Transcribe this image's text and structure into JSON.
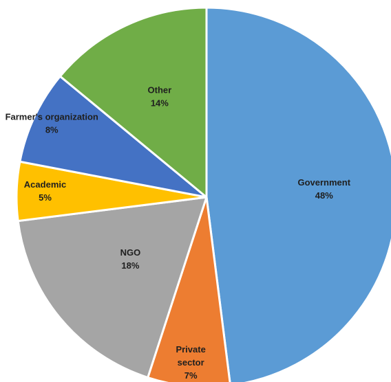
{
  "chart_data": {
    "type": "pie",
    "title": "",
    "start": "12 o'clock, clockwise",
    "slices": [
      {
        "label": "Government",
        "value": 48,
        "percent_label": "48%",
        "color": "#5B9BD5"
      },
      {
        "label": "Private sector",
        "label_lines": [
          "Private",
          "sector"
        ],
        "value": 7,
        "percent_label": "7%",
        "color": "#ED7D31"
      },
      {
        "label": "NGO",
        "value": 18,
        "percent_label": "18%",
        "color": "#A5A5A5"
      },
      {
        "label": "Academic",
        "value": 5,
        "percent_label": "5%",
        "color": "#FFC000"
      },
      {
        "label": "Farmer's organization",
        "value": 8,
        "percent_label": "8%",
        "color": "#4472C4"
      },
      {
        "label": "Other",
        "value": 14,
        "percent_label": "14%",
        "color": "#70AD47"
      }
    ],
    "legend": "none (data labels on slices)"
  }
}
